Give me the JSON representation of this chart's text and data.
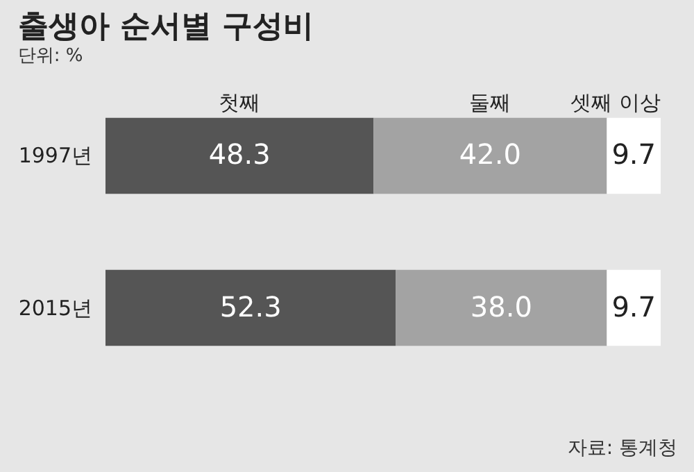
{
  "chart_data": {
    "type": "bar",
    "orientation": "horizontal",
    "stacked": true,
    "title": "출생아 순서별 구성비",
    "subtitle": "단위: %",
    "categories": [
      "1997년",
      "2015년"
    ],
    "series": [
      {
        "name": "첫째",
        "color": "#555555",
        "values": [
          48.3,
          52.3
        ],
        "value_labels": [
          "48.3",
          "52.3"
        ]
      },
      {
        "name": "둘째",
        "color": "#a3a3a3",
        "values": [
          42.0,
          38.0
        ],
        "value_labels": [
          "42.0",
          "38.0"
        ]
      },
      {
        "name": "셋째 이상",
        "color": "#ffffff",
        "values": [
          9.7,
          9.7
        ],
        "value_labels": [
          "9.7",
          "9.7"
        ]
      }
    ],
    "annotations": [
      "자료: 통계청"
    ]
  }
}
